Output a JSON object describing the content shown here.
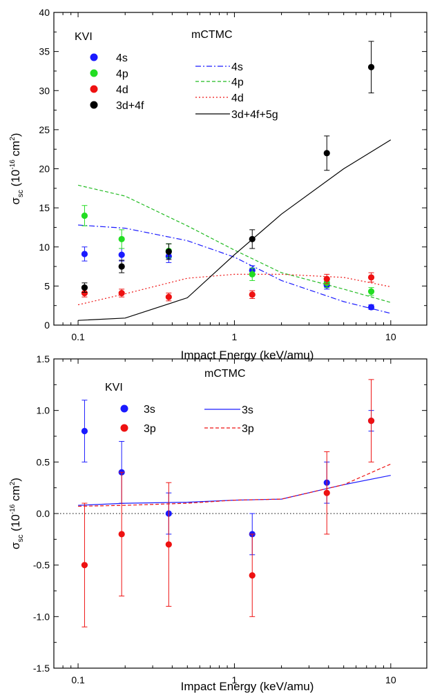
{
  "chart_data": [
    {
      "type": "scatter",
      "panel": "top",
      "xlabel": "Impact Energy (keV/amu)",
      "ylabel_main": "σ",
      "ylabel_sub": "sc",
      "ylabel_unit_open": " (10",
      "ylabel_exp": "-16",
      "ylabel_unit_mid": " cm",
      "ylabel_sq": "2",
      "ylabel_unit_close": ")",
      "xscale": "log",
      "xlim": [
        0.07,
        17
      ],
      "ylim": [
        0,
        40
      ],
      "x_ticks": [
        {
          "value": 0.1,
          "label": "0.1"
        },
        {
          "value": 1,
          "label": "1"
        },
        {
          "value": 10,
          "label": "10"
        }
      ],
      "y_ticks": [
        {
          "value": 0,
          "label": "0"
        },
        {
          "value": 5,
          "label": "5"
        },
        {
          "value": 10,
          "label": "10"
        },
        {
          "value": 15,
          "label": "15"
        },
        {
          "value": 20,
          "label": "20"
        },
        {
          "value": 25,
          "label": "25"
        },
        {
          "value": 30,
          "label": "30"
        },
        {
          "value": 35,
          "label": "35"
        },
        {
          "value": 40,
          "label": "40"
        }
      ],
      "legend_exp_title": "KVI",
      "legend_theory_title": "mCTMC",
      "experiment": [
        {
          "name": "4s",
          "color": "#1a1aff",
          "points": [
            [
              0.11,
              9.1,
              0.9
            ],
            [
              0.19,
              9.0,
              0.8
            ],
            [
              0.38,
              8.8,
              0.8
            ],
            [
              1.3,
              7.0,
              0.6
            ],
            [
              3.9,
              5.1,
              0.5
            ],
            [
              7.5,
              2.3,
              0.3
            ]
          ]
        },
        {
          "name": "4p",
          "color": "#22dd22",
          "points": [
            [
              0.11,
              14.0,
              1.3
            ],
            [
              0.19,
              11.0,
              1.2
            ],
            [
              0.38,
              9.5,
              0.9
            ],
            [
              1.3,
              6.5,
              0.8
            ],
            [
              3.9,
              5.4,
              0.6
            ],
            [
              7.5,
              4.3,
              0.5
            ]
          ]
        },
        {
          "name": "4d",
          "color": "#ee1111",
          "points": [
            [
              0.11,
              4.1,
              0.5
            ],
            [
              0.19,
              4.1,
              0.5
            ],
            [
              0.38,
              3.6,
              0.5
            ],
            [
              1.3,
              3.9,
              0.5
            ],
            [
              3.9,
              5.9,
              0.6
            ],
            [
              7.5,
              6.1,
              0.6
            ]
          ]
        },
        {
          "name": "3d+4f",
          "color": "#000000",
          "points": [
            [
              0.11,
              4.8,
              0.6
            ],
            [
              0.19,
              7.5,
              0.8
            ],
            [
              0.38,
              9.4,
              1.0
            ],
            [
              1.3,
              11.0,
              1.2
            ],
            [
              3.9,
              22.0,
              2.2
            ],
            [
              7.5,
              33.0,
              3.3
            ]
          ]
        }
      ],
      "theory": [
        {
          "name": "4s",
          "color": "#1a1aff",
          "dash": "8,3,2,3",
          "x": [
            0.1,
            0.2,
            0.5,
            1.0,
            2.0,
            5.0,
            10.0
          ],
          "y": [
            12.8,
            12.4,
            10.8,
            8.7,
            5.7,
            3.0,
            1.5
          ]
        },
        {
          "name": "4p",
          "color": "#22bb22",
          "dash": "5,3",
          "x": [
            0.1,
            0.2,
            0.5,
            1.0,
            2.0,
            5.0,
            10.0
          ],
          "y": [
            17.9,
            16.5,
            12.7,
            9.6,
            6.7,
            4.6,
            2.9
          ]
        },
        {
          "name": "4d",
          "color": "#ee1111",
          "dash": "2,3",
          "x": [
            0.1,
            0.2,
            0.5,
            1.0,
            2.0,
            5.0,
            10.0
          ],
          "y": [
            2.6,
            4.0,
            6.0,
            6.5,
            6.5,
            6.1,
            4.9
          ]
        },
        {
          "name": "3d+4f+5g",
          "color": "#000000",
          "dash": "",
          "x": [
            0.1,
            0.2,
            0.5,
            1.0,
            2.0,
            5.0,
            10.0
          ],
          "y": [
            0.6,
            0.9,
            3.5,
            9.0,
            14.2,
            20.0,
            23.7
          ]
        }
      ]
    },
    {
      "type": "scatter",
      "panel": "bottom",
      "xlabel": "Impact Energy (keV/amu)",
      "ylabel_main": "σ",
      "ylabel_sub": "sc",
      "ylabel_unit_open": " (10",
      "ylabel_exp": "-16",
      "ylabel_unit_mid": " cm",
      "ylabel_sq": "2",
      "ylabel_unit_close": ")",
      "xscale": "log",
      "xlim": [
        0.07,
        17
      ],
      "ylim": [
        -1.5,
        1.5
      ],
      "x_ticks": [
        {
          "value": 0.1,
          "label": "0.1"
        },
        {
          "value": 1,
          "label": "1"
        },
        {
          "value": 10,
          "label": "10"
        }
      ],
      "y_ticks": [
        {
          "value": -1.5,
          "label": "-1.5"
        },
        {
          "value": -1.0,
          "label": "-1.0"
        },
        {
          "value": -0.5,
          "label": "-0.5"
        },
        {
          "value": 0.0,
          "label": "0.0"
        },
        {
          "value": 0.5,
          "label": "0.5"
        },
        {
          "value": 1.0,
          "label": "1.0"
        },
        {
          "value": 1.5,
          "label": "1.5"
        }
      ],
      "zero_line": true,
      "legend_exp_title": "KVI",
      "legend_theory_title": "mCTMC",
      "experiment": [
        {
          "name": "3s",
          "color": "#1a1aff",
          "points": [
            [
              0.11,
              0.8,
              0.3
            ],
            [
              0.19,
              0.4,
              0.3
            ],
            [
              0.38,
              0.0,
              0.2
            ],
            [
              1.3,
              -0.2,
              0.2
            ],
            [
              3.9,
              0.3,
              0.2
            ],
            [
              7.5,
              0.9,
              0.1
            ]
          ]
        },
        {
          "name": "3p",
          "color": "#ee1111",
          "points": [
            [
              0.11,
              -0.5,
              0.6
            ],
            [
              0.19,
              -0.2,
              0.6
            ],
            [
              0.38,
              -0.3,
              0.6
            ],
            [
              1.3,
              -0.6,
              0.4
            ],
            [
              3.9,
              0.2,
              0.4
            ],
            [
              7.5,
              0.9,
              0.4
            ]
          ]
        }
      ],
      "theory": [
        {
          "name": "3s",
          "color": "#1a1aff",
          "dash": "",
          "x": [
            0.1,
            0.2,
            0.5,
            1.0,
            2.0,
            5.0,
            10.0
          ],
          "y": [
            0.08,
            0.1,
            0.11,
            0.13,
            0.14,
            0.28,
            0.37
          ]
        },
        {
          "name": "3p",
          "color": "#ee1111",
          "dash": "5,3",
          "x": [
            0.1,
            0.2,
            0.5,
            1.0,
            2.0,
            5.0,
            10.0
          ],
          "y": [
            0.07,
            0.08,
            0.1,
            0.13,
            0.14,
            0.28,
            0.48
          ]
        }
      ]
    }
  ]
}
